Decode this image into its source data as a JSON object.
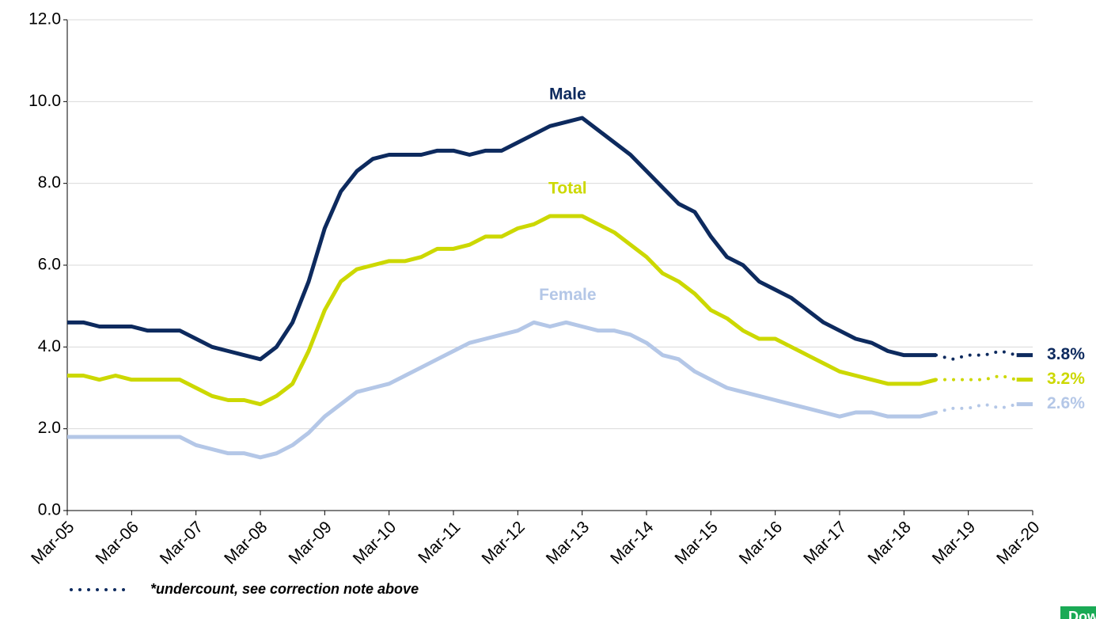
{
  "chart_data": {
    "type": "line",
    "categories": [
      "Mar-05",
      null,
      null,
      null,
      "Mar-06",
      null,
      null,
      null,
      "Mar-07",
      null,
      null,
      null,
      "Mar-08",
      null,
      null,
      null,
      "Mar-09",
      null,
      null,
      null,
      "Mar-10",
      null,
      null,
      null,
      "Mar-11",
      null,
      null,
      null,
      "Mar-12",
      null,
      null,
      null,
      "Mar-13",
      null,
      null,
      null,
      "Mar-14",
      null,
      null,
      null,
      "Mar-15",
      null,
      null,
      null,
      "Mar-16",
      null,
      null,
      null,
      "Mar-17",
      null,
      null,
      null,
      "Mar-18",
      null,
      null,
      null,
      "Mar-19",
      null,
      null,
      null,
      "Mar-20"
    ],
    "series": [
      {
        "name": "Male",
        "color": "#0d2a5e",
        "values": [
          4.6,
          4.6,
          4.5,
          4.5,
          4.5,
          4.4,
          4.4,
          4.4,
          4.2,
          4.0,
          3.9,
          3.8,
          3.7,
          4.0,
          4.6,
          5.6,
          6.9,
          7.8,
          8.3,
          8.6,
          8.7,
          8.7,
          8.7,
          8.8,
          8.8,
          8.7,
          8.8,
          8.8,
          9.0,
          9.2,
          9.4,
          9.5,
          9.6,
          9.3,
          9.0,
          8.7,
          8.3,
          7.9,
          7.5,
          7.3,
          6.7,
          6.2,
          6.0,
          5.6,
          5.4,
          5.2,
          4.9,
          4.6,
          4.4,
          4.2,
          4.1,
          3.9,
          3.8,
          3.8,
          3.8,
          3.7,
          3.8,
          3.8,
          3.9,
          3.8,
          3.8
        ],
        "value_labels": [
          null,
          null,
          null,
          null,
          null,
          null,
          null,
          null,
          null,
          null,
          null,
          null,
          null,
          null,
          null,
          null,
          null,
          null,
          null,
          null,
          null,
          null,
          null,
          null,
          null,
          null,
          null,
          null,
          null,
          null,
          null,
          null,
          null,
          null,
          null,
          null,
          null,
          null,
          null,
          null,
          null,
          null,
          null,
          null,
          null,
          null,
          null,
          null,
          null,
          null,
          null,
          null,
          null,
          null,
          null,
          null,
          null,
          null,
          null,
          null,
          "3.8%"
        ]
      },
      {
        "name": "Total",
        "color": "#ccd800",
        "values": [
          3.3,
          3.3,
          3.2,
          3.3,
          3.2,
          3.2,
          3.2,
          3.2,
          3.0,
          2.8,
          2.7,
          2.7,
          2.6,
          2.8,
          3.1,
          3.9,
          4.9,
          5.6,
          5.9,
          6.0,
          6.1,
          6.1,
          6.2,
          6.4,
          6.4,
          6.5,
          6.7,
          6.7,
          6.9,
          7.0,
          7.2,
          7.2,
          7.2,
          7.0,
          6.8,
          6.5,
          6.2,
          5.8,
          5.6,
          5.3,
          4.9,
          4.7,
          4.4,
          4.2,
          4.2,
          4.0,
          3.8,
          3.6,
          3.4,
          3.3,
          3.2,
          3.1,
          3.1,
          3.1,
          3.2,
          3.2,
          3.2,
          3.2,
          3.3,
          3.2,
          3.2
        ],
        "value_labels": [
          null,
          null,
          null,
          null,
          null,
          null,
          null,
          null,
          null,
          null,
          null,
          null,
          null,
          null,
          null,
          null,
          null,
          null,
          null,
          null,
          null,
          null,
          null,
          null,
          null,
          null,
          null,
          null,
          null,
          null,
          null,
          null,
          null,
          null,
          null,
          null,
          null,
          null,
          null,
          null,
          null,
          null,
          null,
          null,
          null,
          null,
          null,
          null,
          null,
          null,
          null,
          null,
          null,
          null,
          null,
          null,
          null,
          null,
          null,
          null,
          "3.2%"
        ]
      },
      {
        "name": "Female",
        "color": "#b4c7e7",
        "values": [
          1.8,
          1.8,
          1.8,
          1.8,
          1.8,
          1.8,
          1.8,
          1.8,
          1.6,
          1.5,
          1.4,
          1.4,
          1.3,
          1.4,
          1.6,
          1.9,
          2.3,
          2.6,
          2.9,
          3.0,
          3.1,
          3.3,
          3.5,
          3.7,
          3.9,
          4.1,
          4.2,
          4.3,
          4.4,
          4.6,
          4.5,
          4.6,
          4.5,
          4.4,
          4.4,
          4.3,
          4.1,
          3.8,
          3.7,
          3.4,
          3.2,
          3.0,
          2.9,
          2.8,
          2.7,
          2.6,
          2.5,
          2.4,
          2.3,
          2.4,
          2.4,
          2.3,
          2.3,
          2.3,
          2.4,
          2.5,
          2.5,
          2.6,
          2.5,
          2.6,
          2.6
        ],
        "value_labels": [
          null,
          null,
          null,
          null,
          null,
          null,
          null,
          null,
          null,
          null,
          null,
          null,
          null,
          null,
          null,
          null,
          null,
          null,
          null,
          null,
          null,
          null,
          null,
          null,
          null,
          null,
          null,
          null,
          null,
          null,
          null,
          null,
          null,
          null,
          null,
          null,
          null,
          null,
          null,
          null,
          null,
          null,
          null,
          null,
          null,
          null,
          null,
          null,
          null,
          null,
          null,
          null,
          null,
          null,
          null,
          null,
          null,
          null,
          null,
          null,
          "2.6%"
        ]
      }
    ],
    "undercount_from": 54,
    "undercount_to": 59,
    "note": "*undercount, see correction note above",
    "ylim": [
      0,
      12
    ],
    "yticks": [
      {
        "value": 0,
        "label": "0.0"
      },
      {
        "value": 2,
        "label": "2.0"
      },
      {
        "value": 4,
        "label": "4.0"
      },
      {
        "value": 6,
        "label": "6.0"
      },
      {
        "value": 8,
        "label": "8.0"
      },
      {
        "value": 10,
        "label": "10.0"
      },
      {
        "value": 12,
        "label": "12.0"
      }
    ],
    "grid": true
  },
  "button": "Download image"
}
